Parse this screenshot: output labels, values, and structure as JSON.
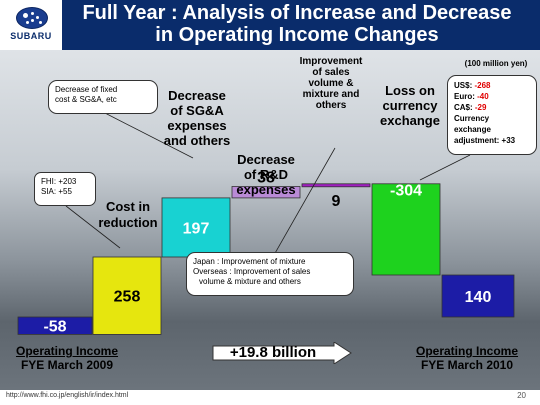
{
  "header": {
    "brand": "SUBARU",
    "title_line1": "Full Year : Analysis of Increase and Decrease",
    "title_line2": "in Operating Income Changes"
  },
  "unit_note": "(100 million yen)",
  "chart_data": {
    "type": "bar",
    "subtype": "waterfall",
    "unit": "100 million yen",
    "bars": [
      {
        "id": "start",
        "value": -58,
        "label": "-58",
        "color": "#1c1ca6",
        "base": 0
      },
      {
        "id": "cost",
        "value": 258,
        "label": "258",
        "color": "#e6e60e",
        "base": -58
      },
      {
        "id": "sga",
        "value": 197,
        "label": "197",
        "color": "#18d2d2",
        "base": 200
      },
      {
        "id": "rd",
        "value": 38,
        "label": "38",
        "color": "#b98ad6",
        "base": 397
      },
      {
        "id": "mix",
        "value": 9,
        "label": "9",
        "color": "#a020c0",
        "base": 435
      },
      {
        "id": "fx",
        "value": -304,
        "label": "-304",
        "color": "#1ed21e",
        "base": 444
      },
      {
        "id": "end",
        "value": 140,
        "label": "140",
        "color": "#1c1ca6",
        "base": 0
      }
    ],
    "category_labels": {
      "start": [
        "Operating Income",
        "FYE March 2009"
      ],
      "cost": [
        "Cost in",
        "reduction"
      ],
      "sga": [
        "Decrease",
        "of SG&A",
        "expenses",
        "and others"
      ],
      "rd": [
        "Decrease",
        "of R&D",
        "expenses"
      ],
      "mix": [
        "Improvement",
        "of sales",
        "volume &",
        "mixture and",
        "others"
      ],
      "fx": [
        "Loss on",
        "currency",
        "exchange"
      ],
      "end": [
        "Operating Income",
        "FYE March 2010"
      ]
    },
    "change_label": "+19.8 billion"
  },
  "callouts": {
    "fixed": [
      "Decrease of fixed",
      "cost & SG&A, etc"
    ],
    "fhi": [
      "FHI: +203",
      "SIA: +55"
    ],
    "mix": [
      "Japan : Improvement of mixture",
      "Overseas : Improvement of sales",
      "volume & mixture and others"
    ],
    "fx": {
      "usd_label": "US$: ",
      "usd_value": "-268",
      "euro_label": "Euro: ",
      "euro_value": "-40",
      "cad_label": "CA$: ",
      "cad_value": "-29",
      "adj1": "Currency",
      "adj2": "exchange",
      "adj3": "adjustment: +33"
    }
  },
  "colors": {
    "negative_text": "#e00000",
    "header_bg": "#0a2c6b"
  },
  "footer": {
    "url": "http://www.fhi.co.jp/english/ir/index.html",
    "page": "20"
  }
}
